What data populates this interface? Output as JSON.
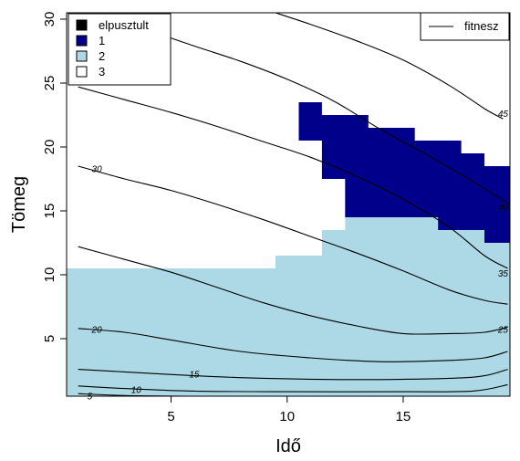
{
  "chart_data": {
    "type": "heatmap",
    "xlabel": "Idő",
    "ylabel": "Tömeg",
    "xlim": [
      0.5,
      19.6
    ],
    "ylim": [
      0.5,
      30.5
    ],
    "xticks": [
      5,
      10,
      15
    ],
    "yticks": [
      5,
      10,
      15,
      20,
      25,
      30
    ],
    "grid": false,
    "legend_categories": {
      "position": "top-left",
      "entries": [
        {
          "label": "elpusztult",
          "color": "#000000"
        },
        {
          "label": "1",
          "color": "#00008B"
        },
        {
          "label": "2",
          "color": "#ADD8E6"
        },
        {
          "label": "3",
          "color": "#FFFFFF"
        }
      ]
    },
    "legend_lines": {
      "position": "top-right",
      "entries": [
        {
          "label": "fitnesz"
        }
      ]
    },
    "regions": [
      {
        "category": "1",
        "color": "#00008B",
        "polygon": [
          [
            10.5,
            23.5
          ],
          [
            11.5,
            23.5
          ],
          [
            11.5,
            22.5
          ],
          [
            13.5,
            22.5
          ],
          [
            13.5,
            21.5
          ],
          [
            15.5,
            21.5
          ],
          [
            15.5,
            20.5
          ],
          [
            17.5,
            20.5
          ],
          [
            17.5,
            19.5
          ],
          [
            18.5,
            19.5
          ],
          [
            18.5,
            18.5
          ],
          [
            19.6,
            18.5
          ],
          [
            19.6,
            12.5
          ],
          [
            18.5,
            12.5
          ],
          [
            18.5,
            13.5
          ],
          [
            16.5,
            13.5
          ],
          [
            16.5,
            14.5
          ],
          [
            12.5,
            14.5
          ],
          [
            12.5,
            17.5
          ],
          [
            11.5,
            17.5
          ],
          [
            11.5,
            20.5
          ],
          [
            10.5,
            20.5
          ]
        ]
      },
      {
        "category": "2",
        "color": "#ADD8E6",
        "polygon": [
          [
            0.5,
            0.5
          ],
          [
            19.6,
            0.5
          ],
          [
            19.6,
            12.5
          ],
          [
            18.5,
            12.5
          ],
          [
            18.5,
            13.5
          ],
          [
            16.5,
            13.5
          ],
          [
            16.5,
            14.5
          ],
          [
            12.5,
            14.5
          ],
          [
            12.5,
            13.5
          ],
          [
            11.5,
            13.5
          ],
          [
            11.5,
            11.5
          ],
          [
            9.5,
            11.5
          ],
          [
            9.5,
            10.5
          ],
          [
            0.5,
            10.5
          ]
        ]
      }
    ],
    "contours": [
      {
        "level": "5",
        "label_at": [
          1.5,
          0.5
        ],
        "points": [
          [
            1,
            0.7
          ],
          [
            3,
            0.55
          ],
          [
            6,
            0.5
          ],
          [
            10,
            0.45
          ],
          [
            15,
            0.45
          ],
          [
            19.5,
            0.5
          ]
        ]
      },
      {
        "level": "10",
        "label_at": [
          3.5,
          1.0
        ],
        "points": [
          [
            1,
            1.3
          ],
          [
            3,
            1.1
          ],
          [
            6,
            0.9
          ],
          [
            10,
            0.85
          ],
          [
            15,
            0.85
          ],
          [
            18,
            0.9
          ],
          [
            19.5,
            1.4
          ]
        ]
      },
      {
        "level": "15",
        "label_at": [
          6,
          2.2
        ],
        "points": [
          [
            1,
            2.6
          ],
          [
            3,
            2.4
          ],
          [
            6,
            2.1
          ],
          [
            9,
            1.9
          ],
          [
            13,
            1.8
          ],
          [
            17,
            1.9
          ],
          [
            18.5,
            2.1
          ],
          [
            19.5,
            2.6
          ]
        ]
      },
      {
        "level": "20",
        "label_at": [
          1.8,
          5.7
        ],
        "points": [
          [
            1,
            5.8
          ],
          [
            3,
            5.5
          ],
          [
            5,
            4.9
          ],
          [
            8,
            4.0
          ],
          [
            11,
            3.5
          ],
          [
            14,
            3.2
          ],
          [
            17,
            3.3
          ],
          [
            18.5,
            3.5
          ],
          [
            19.5,
            4.0
          ]
        ]
      },
      {
        "level": "25",
        "label_at": [
          19.3,
          5.7
        ],
        "points": [
          [
            1,
            12.2
          ],
          [
            3,
            11.2
          ],
          [
            5,
            10.2
          ],
          [
            7,
            9.0
          ],
          [
            9,
            7.8
          ],
          [
            11,
            6.8
          ],
          [
            13,
            6.0
          ],
          [
            15,
            5.4
          ],
          [
            17,
            5.4
          ],
          [
            18.5,
            5.5
          ],
          [
            19.5,
            5.9
          ]
        ]
      },
      {
        "level": "30",
        "label_at": [
          1.8,
          18.3
        ],
        "points": [
          [
            1,
            18.5
          ],
          [
            3,
            17.5
          ],
          [
            5,
            16.6
          ],
          [
            7,
            15.5
          ],
          [
            9,
            14.3
          ],
          [
            11,
            13.0
          ],
          [
            13,
            11.7
          ],
          [
            15,
            10.3
          ],
          [
            17,
            8.8
          ],
          [
            18.5,
            8.0
          ],
          [
            19.5,
            7.7
          ]
        ]
      },
      {
        "level": "35",
        "label_at": [
          19.3,
          10.1
        ],
        "points": [
          [
            1,
            24.7
          ],
          [
            3,
            23.7
          ],
          [
            5,
            22.7
          ],
          [
            7,
            21.6
          ],
          [
            9,
            20.4
          ],
          [
            11,
            19.2
          ],
          [
            13,
            17.7
          ],
          [
            15,
            15.9
          ],
          [
            17,
            13.7
          ],
          [
            18.5,
            11.5
          ],
          [
            19.5,
            10.5
          ]
        ]
      },
      {
        "level": "40",
        "label_at": [
          19.3,
          15.3
        ],
        "points": [
          [
            2.5,
            30.5
          ],
          [
            4,
            29.2
          ],
          [
            6,
            27.9
          ],
          [
            8,
            26.7
          ],
          [
            10,
            25.3
          ],
          [
            12,
            23.6
          ],
          [
            14,
            21.4
          ],
          [
            16,
            19.4
          ],
          [
            18,
            17.3
          ],
          [
            19.5,
            15.6
          ]
        ]
      },
      {
        "level": "45",
        "label_at": [
          19.3,
          22.6
        ],
        "points": [
          [
            9.5,
            30.5
          ],
          [
            11,
            29.6
          ],
          [
            13,
            28.3
          ],
          [
            15,
            26.8
          ],
          [
            17,
            24.8
          ],
          [
            18.5,
            23.0
          ],
          [
            19.3,
            22.2
          ]
        ]
      }
    ]
  }
}
